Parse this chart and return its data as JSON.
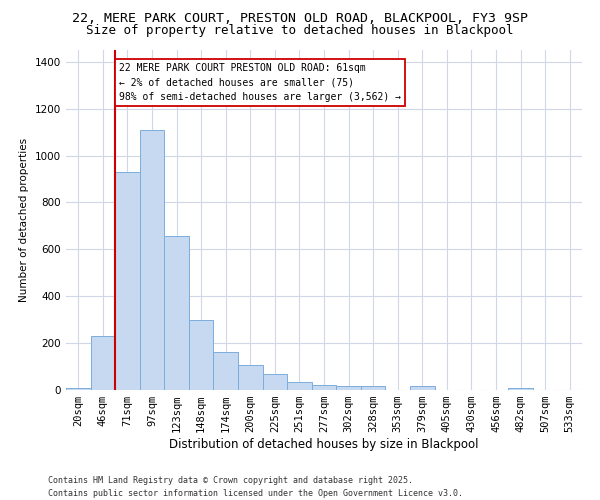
{
  "title_line1": "22, MERE PARK COURT, PRESTON OLD ROAD, BLACKPOOL, FY3 9SP",
  "title_line2": "Size of property relative to detached houses in Blackpool",
  "xlabel": "Distribution of detached houses by size in Blackpool",
  "ylabel": "Number of detached properties",
  "bar_color": "#c6d9f1",
  "bar_edge_color": "#7aaddd",
  "categories": [
    "20sqm",
    "46sqm",
    "71sqm",
    "97sqm",
    "123sqm",
    "148sqm",
    "174sqm",
    "200sqm",
    "225sqm",
    "251sqm",
    "277sqm",
    "302sqm",
    "328sqm",
    "353sqm",
    "379sqm",
    "405sqm",
    "430sqm",
    "456sqm",
    "482sqm",
    "507sqm",
    "533sqm"
  ],
  "values": [
    10,
    230,
    930,
    1110,
    655,
    300,
    160,
    105,
    70,
    35,
    20,
    15,
    15,
    0,
    15,
    0,
    0,
    0,
    10,
    0,
    0
  ],
  "ylim": [
    0,
    1450
  ],
  "yticks": [
    0,
    200,
    400,
    600,
    800,
    1000,
    1200,
    1400
  ],
  "red_line_bin": 2,
  "annotation_text": "22 MERE PARK COURT PRESTON OLD ROAD: 61sqm\n← 2% of detached houses are smaller (75)\n98% of semi-detached houses are larger (3,562) →",
  "footer_line1": "Contains HM Land Registry data © Crown copyright and database right 2025.",
  "footer_line2": "Contains public sector information licensed under the Open Government Licence v3.0.",
  "bg_color": "#ffffff",
  "plot_bg_color": "#ffffff",
  "grid_color": "#d0d8e8",
  "annotation_box_edge": "#cc0000",
  "red_line_color": "#cc0000",
  "title1_fontsize": 9.5,
  "title2_fontsize": 9,
  "xlabel_fontsize": 8.5,
  "ylabel_fontsize": 7.5,
  "tick_fontsize": 7.5,
  "annot_fontsize": 7,
  "footer_fontsize": 6
}
